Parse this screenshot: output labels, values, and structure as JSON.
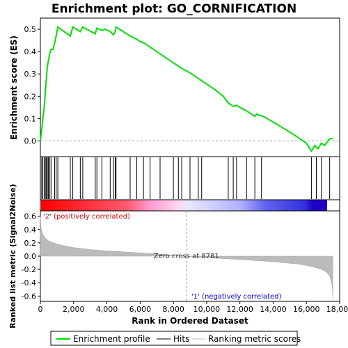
{
  "chart_data": {
    "type": "line",
    "title": "Enrichment plot: GO_CORNIFICATION",
    "top_panel": {
      "ylabel": "Enrichment score (ES)",
      "ylim": [
        -0.07,
        0.55
      ],
      "yticks": [
        "0.0",
        "0.1",
        "0.2",
        "0.3",
        "0.4",
        "0.5"
      ],
      "yticks_values": [
        0.0,
        0.1,
        0.2,
        0.3,
        0.4,
        0.5
      ],
      "series": [
        {
          "name": "Enrichment profile",
          "color": "#00dd00",
          "x": [
            0,
            80,
            150,
            230,
            300,
            360,
            420,
            480,
            560,
            640,
            760,
            860,
            950,
            1050,
            1800,
            1950,
            2400,
            2550,
            3300,
            3400,
            3700,
            3900,
            4200,
            4400,
            4500,
            4550,
            4650,
            5400,
            5800,
            6000,
            6200,
            6600,
            7200,
            8000,
            8300,
            8500,
            9000,
            9500,
            10000,
            10500,
            11000,
            11300,
            11600,
            11800,
            12000,
            12400,
            12900,
            13000,
            13200,
            13400,
            14000,
            15000,
            15500,
            16000,
            16300,
            16500,
            16700,
            16900,
            17100,
            17400,
            17600
          ],
          "y": [
            0.0,
            0.05,
            0.1,
            0.15,
            0.22,
            0.28,
            0.33,
            0.36,
            0.39,
            0.41,
            0.41,
            0.44,
            0.47,
            0.51,
            0.47,
            0.51,
            0.49,
            0.51,
            0.48,
            0.505,
            0.495,
            0.5,
            0.49,
            0.475,
            0.49,
            0.51,
            0.505,
            0.47,
            0.455,
            0.445,
            0.44,
            0.42,
            0.39,
            0.35,
            0.335,
            0.325,
            0.305,
            0.28,
            0.255,
            0.23,
            0.2,
            0.17,
            0.155,
            0.16,
            0.15,
            0.135,
            0.11,
            0.12,
            0.115,
            0.11,
            0.085,
            0.04,
            0.015,
            -0.01,
            -0.045,
            -0.02,
            -0.035,
            -0.01,
            -0.02,
            0.01,
            0.01
          ]
        }
      ]
    },
    "hits_panel": {
      "series_name": "Hits",
      "hit_positions": [
        80,
        150,
        230,
        300,
        360,
        420,
        480,
        560,
        640,
        860,
        950,
        1050,
        1800,
        1950,
        2400,
        2550,
        3300,
        3400,
        3700,
        4200,
        4400,
        4500,
        4550,
        5400,
        5800,
        6200,
        6600,
        7200,
        8000,
        8300,
        8500,
        9000,
        9500,
        9700,
        11300,
        11600,
        11800,
        12400,
        12900,
        13300,
        16300,
        16600,
        16900,
        17400
      ]
    },
    "metric_panel": {
      "ylabel": "Ranked list metric (Signal2Noise)",
      "series_name": "Ranking metric scores",
      "ylim": [
        -0.68,
        0.68
      ],
      "yticks": [
        "0.6",
        "0.4",
        "0.2",
        "0.0",
        "-0.2",
        "-0.4",
        "-0.6"
      ],
      "yticks_values": [
        0.6,
        0.4,
        0.2,
        0.0,
        -0.2,
        -0.4,
        -0.6
      ],
      "profile_x": [
        0,
        30,
        80,
        150,
        300,
        500,
        800,
        1200,
        2000,
        3000,
        4000,
        5000,
        6000,
        7000,
        8000,
        8781,
        9500,
        10500,
        11500,
        12500,
        13500,
        14500,
        15500,
        16000,
        16500,
        16900,
        17200,
        17400,
        17550,
        17600
      ],
      "profile_y": [
        0.6,
        0.46,
        0.38,
        0.33,
        0.27,
        0.23,
        0.2,
        0.17,
        0.13,
        0.1,
        0.08,
        0.065,
        0.05,
        0.035,
        0.015,
        0.0,
        -0.015,
        -0.03,
        -0.045,
        -0.06,
        -0.075,
        -0.095,
        -0.12,
        -0.14,
        -0.17,
        -0.2,
        -0.24,
        -0.3,
        -0.45,
        -0.65
      ],
      "zero_cross_label": "Zero cross at 8781",
      "zero_cross": 8781,
      "pos_label": "'2' (positively correlated)",
      "neg_label": "'1' (negatively correlated)",
      "pos_color": "#dd0000",
      "neg_color": "#0000cc"
    },
    "xaxis": {
      "xlabel": "Rank in Ordered Dataset",
      "xlim": [
        0,
        18000
      ],
      "xticks": [
        "0",
        "2,000",
        "4,000",
        "6,000",
        "8,000",
        "10,000",
        "12,000",
        "14,000",
        "16,000",
        "18,000"
      ],
      "xticks_values": [
        0,
        2000,
        4000,
        6000,
        8000,
        10000,
        12000,
        14000,
        16000,
        18000
      ],
      "n_genes": 17650
    },
    "legend": {
      "placement": "bottom",
      "entries": [
        {
          "label": "Enrichment profile",
          "color": "#00dd00"
        },
        {
          "label": "Hits",
          "color": "#000000"
        },
        {
          "label": "Ranking metric scores",
          "color": "#bbbbbb"
        }
      ]
    }
  }
}
